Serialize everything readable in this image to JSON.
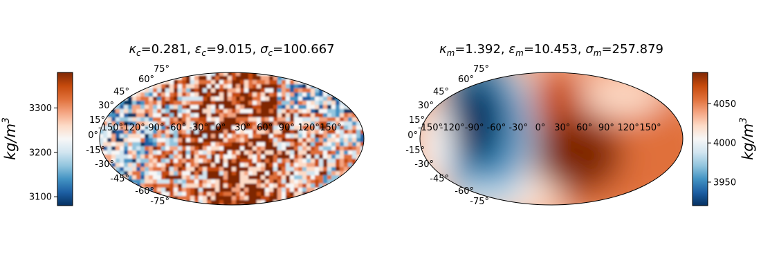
{
  "chart_data": [
    {
      "type": "heatmap",
      "projection": "mollweide",
      "title": {
        "kappa_sym": "κ",
        "kappa_sub": "c",
        "kappa_val": "=0.281, ",
        "eps_sym": "ε",
        "eps_sub": "c",
        "eps_val": "=9.015, ",
        "sigma_sym": "σ",
        "sigma_sub": "c",
        "sigma_val": "=100.667"
      },
      "lon_ticks": [
        "-150°",
        "-120°",
        "-90°",
        "-60°",
        "-30°",
        "0°",
        "30°",
        "60°",
        "90°",
        "120°",
        "150°"
      ],
      "lat_ticks": [
        "75°",
        "60°",
        "45°",
        "30°",
        "15°",
        "0°",
        "-15°",
        "-30°",
        "-45°",
        "-60°",
        "-75°"
      ],
      "colorbar": {
        "position": "left",
        "range": [
          3080,
          3380
        ],
        "ticks": [
          "3100",
          "3200",
          "3300"
        ],
        "label_base": "kg/m",
        "label_exp": "3"
      },
      "field": {
        "pattern": "fine-scale noise",
        "mean": 3210,
        "description_hint": "small-scale heterogeneity, warmer (higher) centrally between -60° and 60°"
      },
      "colormap": [
        "#053061",
        "#2166ac",
        "#4393c3",
        "#92c5de",
        "#d1e5f0",
        "#f7f7f7",
        "#fddbc7",
        "#f4a582",
        "#d6604d",
        "#b2182b",
        "#67001f"
      ]
    },
    {
      "type": "heatmap",
      "projection": "mollweide",
      "title": {
        "kappa_sym": "κ",
        "kappa_sub": "m",
        "kappa_val": "=1.392, ",
        "eps_sym": "ε",
        "eps_sub": "m",
        "eps_val": "=10.453, ",
        "sigma_sym": "σ",
        "sigma_sub": "m",
        "sigma_val": "=257.879"
      },
      "lon_ticks": [
        "-150°",
        "-120°",
        "-90°",
        "-60°",
        "-30°",
        "0°",
        "30°",
        "60°",
        "90°",
        "120°",
        "150°"
      ],
      "lat_ticks": [
        "75°",
        "60°",
        "45°",
        "30°",
        "15°",
        "0°",
        "-15°",
        "-30°",
        "-45°",
        "-60°",
        "-75°"
      ],
      "colorbar": {
        "position": "right",
        "range": [
          3920,
          4090
        ],
        "ticks": [
          "3950",
          "4000",
          "4050"
        ],
        "label_base": "kg/m",
        "label_exp": "3"
      },
      "field": {
        "pattern": "large-scale smooth",
        "low_center_lon": -90,
        "high_center_lon": 30
      }
    }
  ],
  "colors": {
    "cmap": [
      "#053061",
      "#1d5fa3",
      "#4393c3",
      "#92c5de",
      "#d1e5f0",
      "#f7f7f7",
      "#fddbc7",
      "#f4a582",
      "#e0703a",
      "#c54a0c",
      "#7f2704"
    ]
  }
}
